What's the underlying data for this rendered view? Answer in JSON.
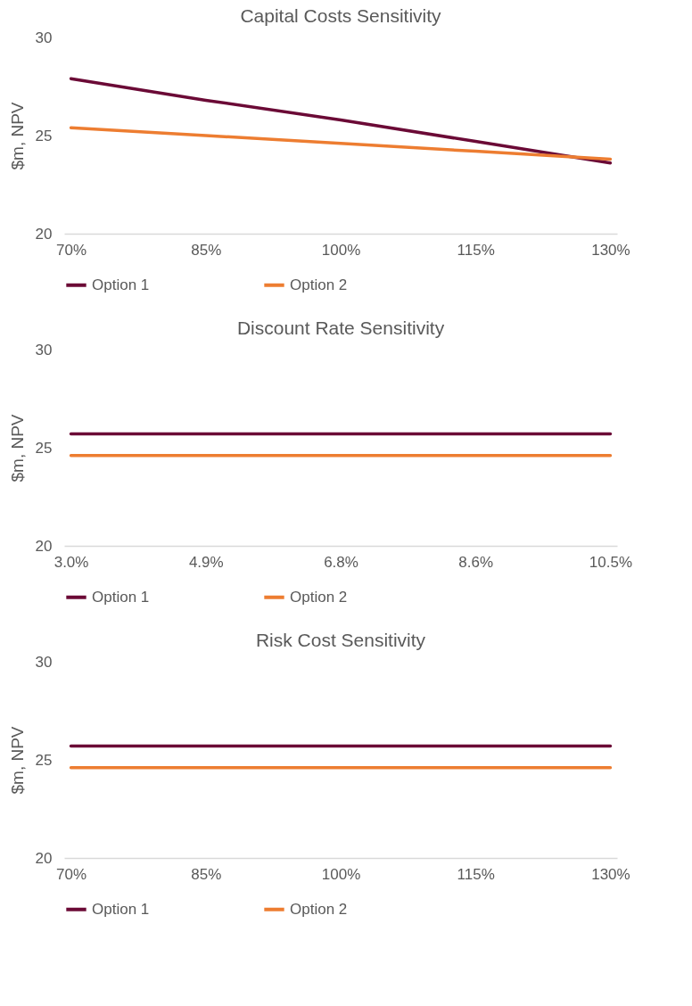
{
  "chart_data": [
    {
      "type": "line",
      "title": "Capital Costs Sensitivity",
      "ylabel": "$m, NPV",
      "categories": [
        "70%",
        "85%",
        "100%",
        "115%",
        "130%"
      ],
      "ylim": [
        20,
        30
      ],
      "yticks": [
        20,
        25,
        30
      ],
      "grid": false,
      "legend": "bottom",
      "marker": "none",
      "line_style": "solid",
      "series": [
        {
          "name": "Option 1",
          "color": "#6b0a36",
          "values": [
            27.9,
            26.8,
            25.8,
            24.7,
            23.6
          ]
        },
        {
          "name": "Option 2",
          "color": "#ed7d31",
          "values": [
            25.4,
            25.0,
            24.6,
            24.2,
            23.8
          ]
        }
      ]
    },
    {
      "type": "line",
      "title": "Discount Rate Sensitivity",
      "ylabel": "$m, NPV",
      "categories": [
        "3.0%",
        "4.9%",
        "6.8%",
        "8.6%",
        "10.5%"
      ],
      "ylim": [
        20,
        30
      ],
      "yticks": [
        20,
        25,
        30
      ],
      "grid": false,
      "legend": "bottom",
      "marker": "none",
      "line_style": "solid",
      "series": [
        {
          "name": "Option 1",
          "color": "#6b0a36",
          "values": [
            25.7,
            25.7,
            25.7,
            25.7,
            25.7
          ]
        },
        {
          "name": "Option 2",
          "color": "#ed7d31",
          "values": [
            24.6,
            24.6,
            24.6,
            24.6,
            24.6
          ]
        }
      ]
    },
    {
      "type": "line",
      "title": "Risk Cost Sensitivity",
      "ylabel": "$m, NPV",
      "categories": [
        "70%",
        "85%",
        "100%",
        "115%",
        "130%"
      ],
      "ylim": [
        20,
        30
      ],
      "yticks": [
        20,
        25,
        30
      ],
      "grid": false,
      "legend": "bottom",
      "marker": "none",
      "line_style": "solid",
      "series": [
        {
          "name": "Option 1",
          "color": "#6b0a36",
          "values": [
            25.7,
            25.7,
            25.7,
            25.7,
            25.7
          ]
        },
        {
          "name": "Option 2",
          "color": "#ed7d31",
          "values": [
            24.6,
            24.6,
            24.6,
            24.6,
            24.6
          ]
        }
      ]
    }
  ]
}
